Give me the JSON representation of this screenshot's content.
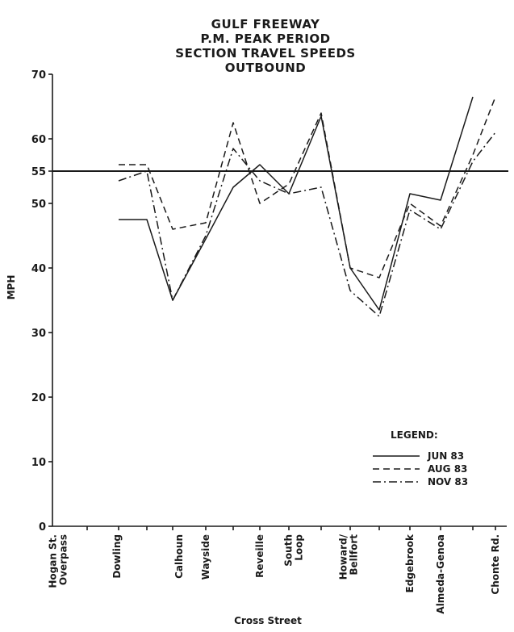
{
  "chart_data": {
    "type": "line",
    "title": [
      "GULF FREEWAY",
      "P.M. PEAK PERIOD",
      "SECTION TRAVEL SPEEDS",
      "OUTBOUND"
    ],
    "xlabel": "Cross Street",
    "ylabel": "MPH",
    "ylim": [
      0,
      70
    ],
    "yticks": [
      0,
      10,
      20,
      30,
      40,
      50,
      55,
      60,
      70
    ],
    "reference_line": 55,
    "categories": [
      [
        "Hogan St.",
        "Overpass"
      ],
      [
        "Dowling"
      ],
      [
        "Calhoun"
      ],
      [
        "Wayside"
      ],
      [
        "Reveille"
      ],
      [
        "South",
        "Loop"
      ],
      [
        "Howard/",
        "Bellfort"
      ],
      [
        "Edgebrook"
      ],
      [
        "Almeda-Genoa"
      ],
      [
        "Chonte Rd."
      ]
    ],
    "x_points": [
      "Hogan St. Overpass",
      "",
      "Dowling",
      "",
      "",
      "Calhoun",
      "",
      "Wayside",
      "",
      "",
      "Reveille",
      "",
      "South Loop",
      "",
      "",
      "Howard/Bellfort",
      "",
      "Edgebrook",
      "",
      "Almeda-Genoa",
      "",
      "Chonte Rd."
    ],
    "series": [
      {
        "name": "JUN 83",
        "style": "solid",
        "x": [
          1,
          2,
          3,
          4,
          5,
          6,
          7,
          8,
          9,
          10,
          11,
          12,
          13
        ],
        "values": [
          47.5,
          47.5,
          35,
          44.5,
          52.5,
          56,
          51.5,
          63.5,
          40,
          33.5,
          51.5,
          50.5,
          66.5
        ]
      },
      {
        "name": "AUG 83",
        "style": "dashed",
        "x": [
          1,
          2,
          3,
          4,
          5,
          6,
          7,
          8,
          9,
          10,
          11,
          12,
          13,
          14
        ],
        "values": [
          56,
          56,
          46,
          47,
          62.5,
          50,
          53,
          64,
          40,
          38.5,
          50,
          46.5,
          57.5,
          66.5
        ]
      },
      {
        "name": "NOV 83",
        "style": "dashdot",
        "x": [
          1,
          2,
          3,
          4,
          5,
          6,
          7,
          8,
          9,
          10,
          11,
          12,
          13,
          14
        ],
        "values": [
          53.5,
          55,
          35,
          45,
          58.5,
          53.5,
          51.5,
          52.5,
          36.5,
          32.5,
          49,
          46,
          56.5,
          61
        ]
      }
    ],
    "legend": {
      "title": "LEGEND:",
      "placement": "lower-right",
      "entries": [
        "JUN 83",
        "AUG 83",
        "NOV 83"
      ]
    }
  }
}
